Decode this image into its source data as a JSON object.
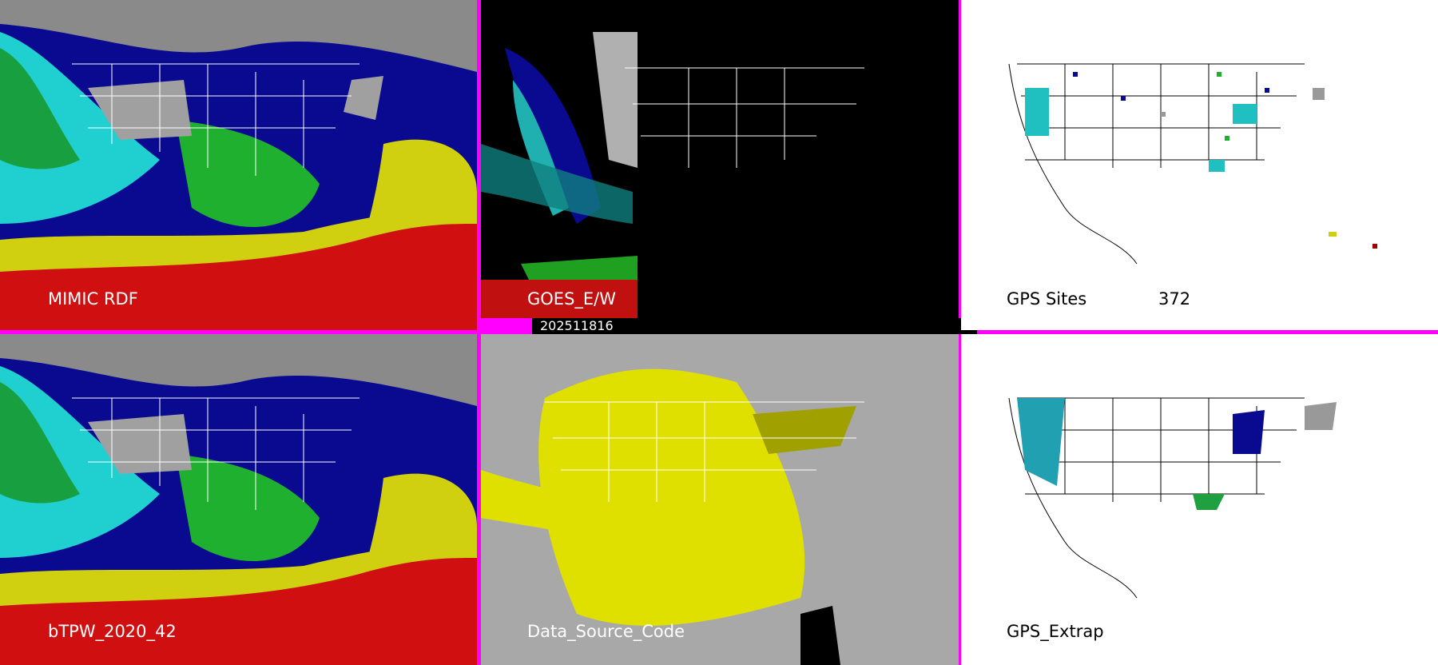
{
  "panels": [
    {
      "label": "MIMIC RDF"
    },
    {
      "label": "GOES_E/W",
      "timestamp": "202511816"
    },
    {
      "label": "GPS Sites",
      "count": "372"
    },
    {
      "label": "bTPW_2020_42"
    },
    {
      "label": "Data_Source_Code"
    },
    {
      "label": "GPS_Extrap"
    }
  ]
}
